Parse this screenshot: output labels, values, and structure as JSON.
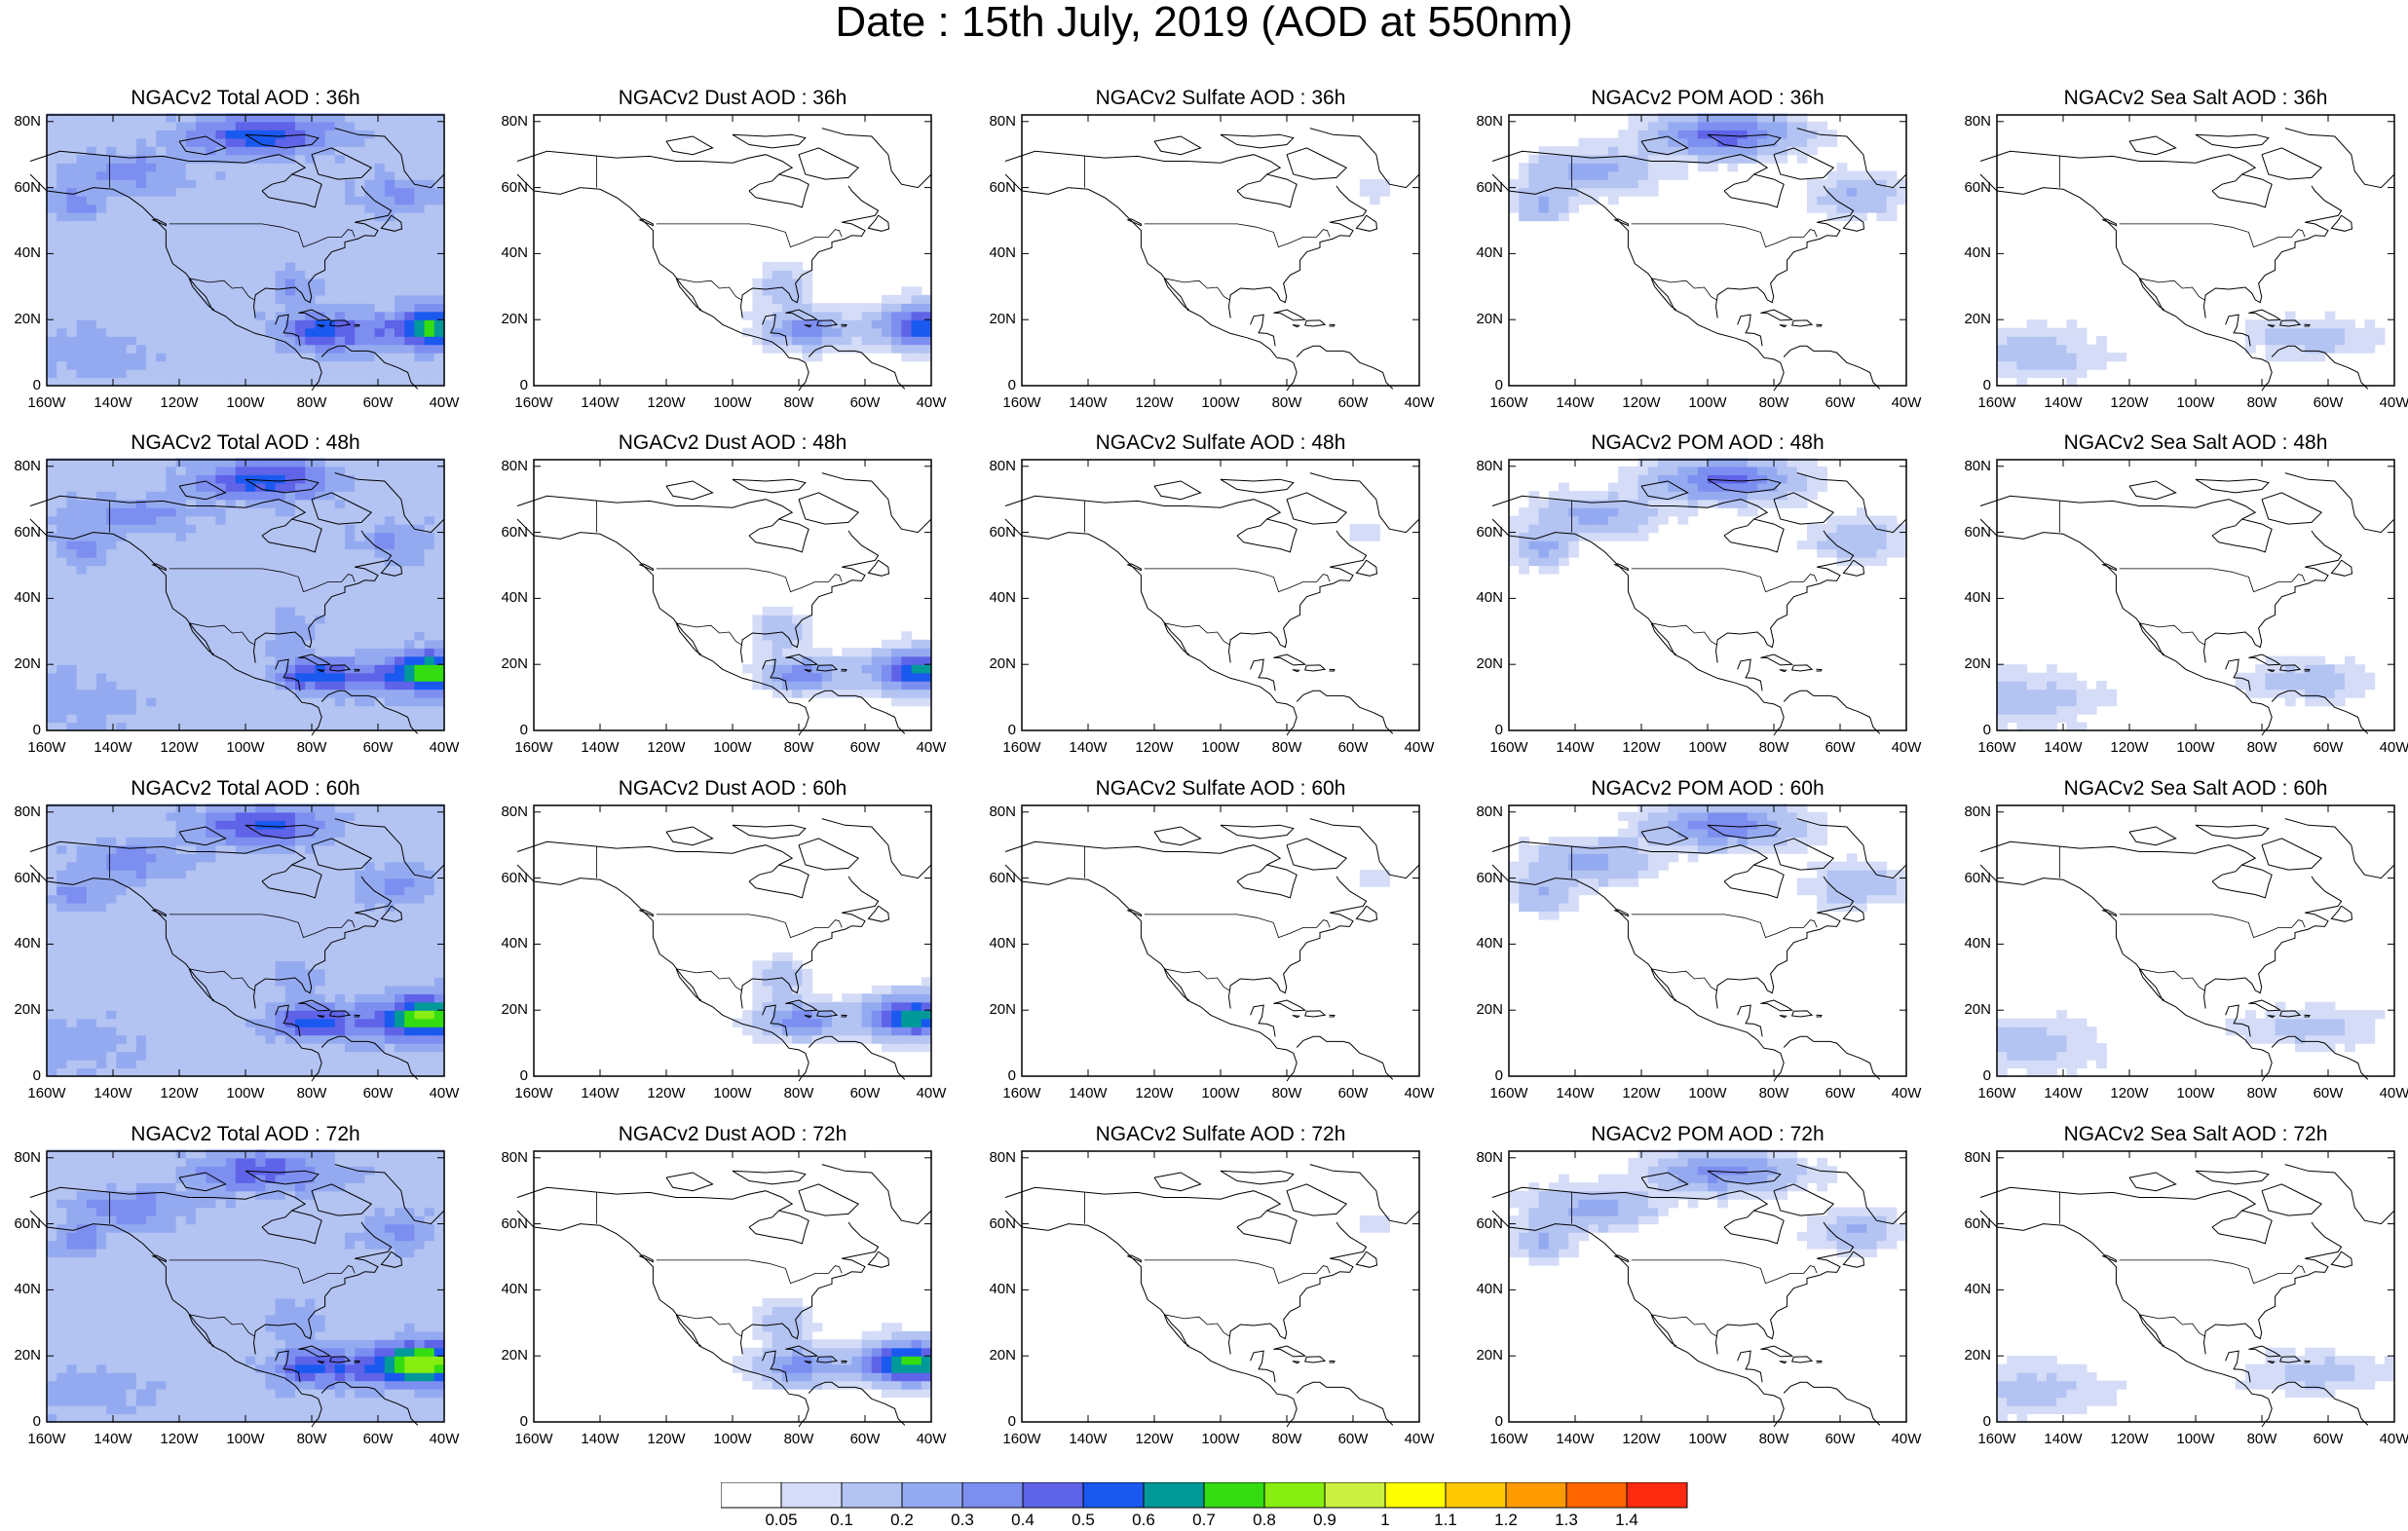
{
  "figure": {
    "title": "Date : 15th July, 2019 (AOD at 550nm)"
  },
  "panels": [
    {
      "title": "NGACv2 Total AOD : 36h",
      "species": "total"
    },
    {
      "title": "NGACv2 Dust AOD : 36h",
      "species": "dust"
    },
    {
      "title": "NGACv2 Sulfate AOD : 36h",
      "species": "sulfate"
    },
    {
      "title": "NGACv2 POM AOD : 36h",
      "species": "pom"
    },
    {
      "title": "NGACv2 Sea Salt AOD : 36h",
      "species": "seasalt"
    },
    {
      "title": "NGACv2 Total AOD : 48h",
      "species": "total"
    },
    {
      "title": "NGACv2 Dust AOD : 48h",
      "species": "dust"
    },
    {
      "title": "NGACv2 Sulfate AOD : 48h",
      "species": "sulfate"
    },
    {
      "title": "NGACv2 POM AOD : 48h",
      "species": "pom"
    },
    {
      "title": "NGACv2 Sea Salt AOD : 48h",
      "species": "seasalt"
    },
    {
      "title": "NGACv2 Total AOD : 60h",
      "species": "total"
    },
    {
      "title": "NGACv2 Dust AOD : 60h",
      "species": "dust"
    },
    {
      "title": "NGACv2 Sulfate AOD : 60h",
      "species": "sulfate"
    },
    {
      "title": "NGACv2 POM AOD : 60h",
      "species": "pom"
    },
    {
      "title": "NGACv2 Sea Salt AOD : 60h",
      "species": "seasalt"
    },
    {
      "title": "NGACv2 Total AOD : 72h",
      "species": "total"
    },
    {
      "title": "NGACv2 Dust AOD : 72h",
      "species": "dust"
    },
    {
      "title": "NGACv2 Sulfate AOD : 72h",
      "species": "sulfate"
    },
    {
      "title": "NGACv2 POM AOD : 72h",
      "species": "pom"
    },
    {
      "title": "NGACv2 Sea Salt  AOD : 72h",
      "species": "seasalt"
    }
  ],
  "axes": {
    "lat_ticks": [
      "80N",
      "60N",
      "40N",
      "20N",
      "0"
    ],
    "lon_ticks": [
      "160W",
      "140W",
      "120W",
      "100W",
      "80W",
      "60W",
      "40W"
    ]
  },
  "colorbar": {
    "labels": [
      "0.05",
      "0.1",
      "0.2",
      "0.3",
      "0.4",
      "0.5",
      "0.6",
      "0.7",
      "0.8",
      "0.9",
      "1",
      "1.1",
      "1.2",
      "1.3",
      "1.4"
    ],
    "colors": [
      "#ffffff",
      "#d4dcf7",
      "#b3c3f2",
      "#94aaf0",
      "#7c8ef0",
      "#5e63e8",
      "#1a59f0",
      "#009999",
      "#33dd11",
      "#88ee11",
      "#ccf040",
      "#ffff00",
      "#ffc800",
      "#ff9a00",
      "#ff6600",
      "#ff2a10"
    ]
  }
}
